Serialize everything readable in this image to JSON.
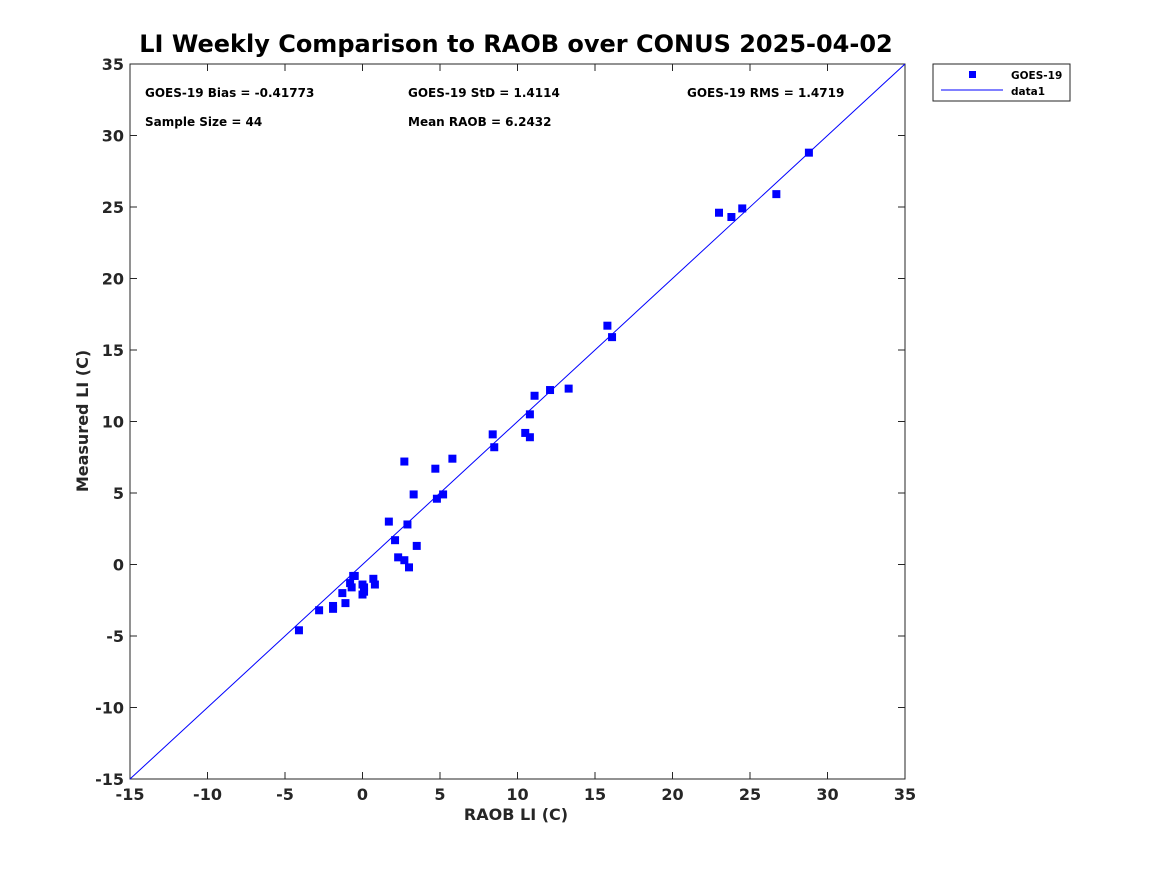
{
  "chart_data": {
    "type": "scatter",
    "title": "LI Weekly Comparison to RAOB over CONUS 2025-04-02",
    "xlabel": "RAOB LI (C)",
    "ylabel": "Measured LI (C)",
    "xlim": [
      -15,
      35
    ],
    "ylim": [
      -15,
      35
    ],
    "xticks": [
      -15,
      -10,
      -5,
      0,
      5,
      10,
      15,
      20,
      25,
      30,
      35
    ],
    "yticks": [
      -15,
      -10,
      -5,
      0,
      5,
      10,
      15,
      20,
      25,
      30,
      35
    ],
    "grid": false,
    "legend_position": "outside-top-right",
    "stats": {
      "bias": "GOES-19 Bias = -0.41773",
      "std": "GOES-19 StD = 1.4114",
      "rms": "GOES-19 RMS = 1.4719",
      "sample_size": "Sample Size = 44",
      "mean_raob": "Mean RAOB = 6.2432"
    },
    "series": [
      {
        "name": "GOES-19",
        "style": "square-marker",
        "color": "#0000ff",
        "points": [
          [
            -4.1,
            -4.6
          ],
          [
            -2.8,
            -3.2
          ],
          [
            -1.9,
            -3.1
          ],
          [
            -1.9,
            -2.9
          ],
          [
            -1.3,
            -2.0
          ],
          [
            -1.1,
            -2.7
          ],
          [
            -0.8,
            -1.3
          ],
          [
            -0.7,
            -1.6
          ],
          [
            -0.6,
            -0.8
          ],
          [
            -0.5,
            -0.8
          ],
          [
            0.0,
            -2.1
          ],
          [
            0.1,
            -1.9
          ],
          [
            0.0,
            -1.4
          ],
          [
            0.1,
            -1.6
          ],
          [
            0.7,
            -1.0
          ],
          [
            0.8,
            -1.4
          ],
          [
            1.7,
            3.0
          ],
          [
            2.1,
            1.7
          ],
          [
            2.3,
            0.5
          ],
          [
            2.7,
            0.3
          ],
          [
            2.7,
            7.2
          ],
          [
            2.9,
            2.8
          ],
          [
            3.0,
            -0.2
          ],
          [
            3.3,
            4.9
          ],
          [
            3.5,
            1.3
          ],
          [
            4.7,
            6.7
          ],
          [
            4.8,
            4.6
          ],
          [
            5.2,
            4.9
          ],
          [
            5.8,
            7.4
          ],
          [
            8.4,
            9.1
          ],
          [
            8.5,
            8.2
          ],
          [
            10.5,
            9.2
          ],
          [
            10.8,
            10.5
          ],
          [
            10.8,
            8.9
          ],
          [
            11.1,
            11.8
          ],
          [
            12.1,
            12.2
          ],
          [
            13.3,
            12.3
          ],
          [
            15.8,
            16.7
          ],
          [
            16.1,
            15.9
          ],
          [
            23.0,
            24.6
          ],
          [
            23.8,
            24.3
          ],
          [
            24.5,
            24.9
          ],
          [
            26.7,
            25.9
          ],
          [
            28.8,
            28.8
          ]
        ]
      },
      {
        "name": "data1",
        "style": "line",
        "color": "#0000ff",
        "points": [
          [
            -15,
            -15
          ],
          [
            35,
            35
          ]
        ]
      }
    ]
  }
}
